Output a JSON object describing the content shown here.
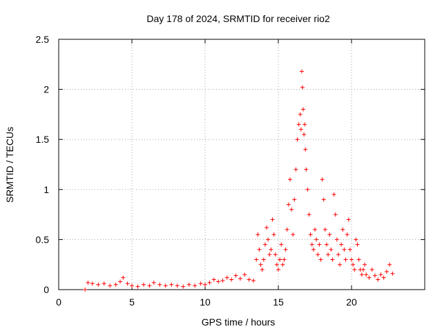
{
  "chart_data": {
    "type": "scatter",
    "title": "Day 178 of 2024, SRMTID for receiver rio2",
    "xlabel": "GPS time / hours",
    "ylabel": "SRMTID / TECUs",
    "xlim": [
      0,
      25
    ],
    "ylim": [
      0,
      2.5
    ],
    "x_ticks": [
      0,
      5,
      10,
      15,
      20
    ],
    "x_tick_labels": [
      "0",
      "5",
      "10",
      "15",
      "20"
    ],
    "y_ticks": [
      0,
      0.5,
      1,
      1.5,
      2,
      2.5
    ],
    "y_tick_labels": [
      "0",
      "0.5",
      "1",
      "1.5",
      "2",
      "2.5"
    ],
    "grid": true,
    "marker": "+",
    "color": "#ff0000",
    "series": [
      {
        "name": "SRMTID",
        "x": [
          1.8,
          2.0,
          2.3,
          2.7,
          3.1,
          3.5,
          3.9,
          4.2,
          4.4,
          4.7,
          5.0,
          5.4,
          5.8,
          6.2,
          6.5,
          6.9,
          7.3,
          7.7,
          8.1,
          8.5,
          8.9,
          9.3,
          9.7,
          10.0,
          10.3,
          10.6,
          10.9,
          11.2,
          11.5,
          11.8,
          12.1,
          12.4,
          12.7,
          13.0,
          13.3,
          13.5,
          13.6,
          13.7,
          13.8,
          13.9,
          14.0,
          14.1,
          14.2,
          14.3,
          14.4,
          14.5,
          14.6,
          14.7,
          14.8,
          14.9,
          15.0,
          15.1,
          15.2,
          15.3,
          15.4,
          15.5,
          15.6,
          15.7,
          15.8,
          15.9,
          16.0,
          16.1,
          16.2,
          16.3,
          16.4,
          16.5,
          16.55,
          16.6,
          16.65,
          16.7,
          16.75,
          16.8,
          16.85,
          16.9,
          17.0,
          17.1,
          17.2,
          17.3,
          17.4,
          17.5,
          17.6,
          17.7,
          17.8,
          17.9,
          18.0,
          18.1,
          18.2,
          18.3,
          18.4,
          18.5,
          18.6,
          18.7,
          18.8,
          18.9,
          19.0,
          19.1,
          19.2,
          19.3,
          19.4,
          19.5,
          19.6,
          19.7,
          19.8,
          19.9,
          20.0,
          20.1,
          20.2,
          20.3,
          20.4,
          20.5,
          20.6,
          20.7,
          20.8,
          20.9,
          21.0,
          21.2,
          21.4,
          21.6,
          21.8,
          22.0,
          22.2,
          22.4,
          22.6,
          22.8
        ],
        "y": [
          0.0,
          0.07,
          0.06,
          0.05,
          0.06,
          0.04,
          0.05,
          0.08,
          0.12,
          0.06,
          0.04,
          0.03,
          0.05,
          0.04,
          0.07,
          0.05,
          0.04,
          0.05,
          0.04,
          0.03,
          0.05,
          0.04,
          0.06,
          0.05,
          0.07,
          0.1,
          0.08,
          0.09,
          0.12,
          0.1,
          0.14,
          0.11,
          0.15,
          0.1,
          0.09,
          0.3,
          0.55,
          0.4,
          0.25,
          0.2,
          0.3,
          0.45,
          0.62,
          0.5,
          0.35,
          0.4,
          0.7,
          0.55,
          0.35,
          0.25,
          0.2,
          0.3,
          0.45,
          0.25,
          0.3,
          0.4,
          0.6,
          0.85,
          1.1,
          0.8,
          0.55,
          0.9,
          1.2,
          1.5,
          1.65,
          1.75,
          1.6,
          2.18,
          2.02,
          1.8,
          1.55,
          1.65,
          1.4,
          1.2,
          1.0,
          0.75,
          0.55,
          0.45,
          0.4,
          0.6,
          0.5,
          0.35,
          0.45,
          0.3,
          1.1,
          0.9,
          0.6,
          0.45,
          0.35,
          0.55,
          0.4,
          0.3,
          0.95,
          0.75,
          0.5,
          0.35,
          0.25,
          0.45,
          0.6,
          0.4,
          0.3,
          0.55,
          0.7,
          0.4,
          0.3,
          0.25,
          0.2,
          0.5,
          0.45,
          0.3,
          0.2,
          0.15,
          0.2,
          0.25,
          0.15,
          0.12,
          0.2,
          0.14,
          0.1,
          0.15,
          0.12,
          0.18,
          0.25,
          0.16
        ]
      }
    ]
  }
}
